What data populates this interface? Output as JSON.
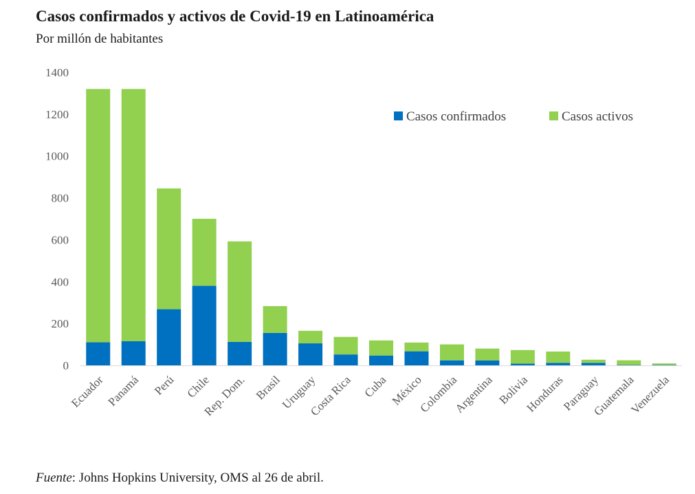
{
  "title": "Casos confirmados y activos de Covid-19 en Latinoamérica",
  "subtitle": "Por millón de habitantes",
  "source": {
    "label": "Fuente",
    "text": ": Johns Hopkins University, OMS al 26 de abril."
  },
  "colors": {
    "confirmados": "#0070c0",
    "activos": "#92d050",
    "axis": "#d9d9d9",
    "tick_text": "#595959"
  },
  "chart_data": {
    "type": "bar",
    "stacked": true,
    "categories": [
      "Ecuador",
      "Panamá",
      "Perú",
      "Chile",
      "Rep. Dom.",
      "Brasil",
      "Uruguay",
      "Costa Rica",
      "Cuba",
      "México",
      "Colombia",
      "Argentina",
      "Bolivia",
      "Honduras",
      "Paraguay",
      "Guatemala",
      "Venezuela"
    ],
    "series": [
      {
        "name": "Casos confirmados",
        "color": "#0070c0",
        "values": [
          110,
          115,
          268,
          380,
          112,
          155,
          105,
          52,
          47,
          67,
          24,
          23,
          8,
          12,
          12,
          2,
          2
        ]
      },
      {
        "name": "Casos activos",
        "color": "#92d050",
        "values": [
          1210,
          1205,
          577,
          320,
          480,
          128,
          60,
          84,
          72,
          42,
          76,
          57,
          65,
          54,
          15,
          22,
          7
        ]
      }
    ],
    "yticks": [
      0,
      200,
      400,
      600,
      800,
      1000,
      1200,
      1400
    ],
    "ylim": [
      0,
      1400
    ],
    "xlabel": "",
    "ylabel": "",
    "legend_position": "top-right",
    "grid": false
  }
}
